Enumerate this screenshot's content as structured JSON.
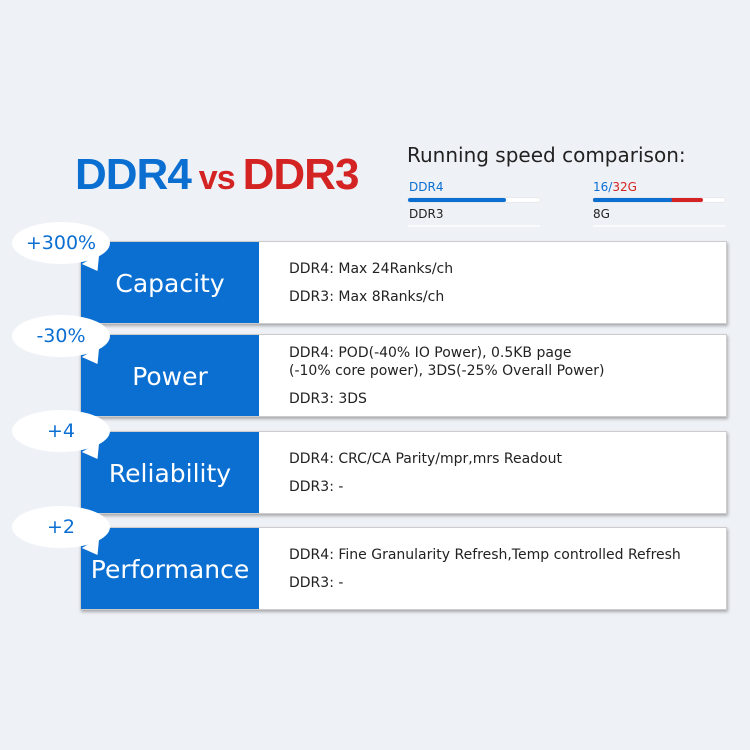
{
  "title": {
    "left": "DDR4",
    "vs": "vs",
    "right": "DDR3"
  },
  "speed": {
    "title": "Running speed comparison:",
    "ddr4_label": "DDR4",
    "ddr3_label": "DDR3",
    "cap_a": "16/",
    "cap_b": "32G",
    "cap_ddr3": "8G",
    "ddr4_level": 0.74,
    "cap16_level": 0.6,
    "cap32_level": 0.83,
    "colors": {
      "blue": "#0b6fd2",
      "red": "#d42323"
    }
  },
  "rows": [
    {
      "badge": "+300%",
      "category": "Capacity",
      "lines": [
        "DDR4: Max 24Ranks/ch",
        "DDR3: Max 8Ranks/ch"
      ]
    },
    {
      "badge": "-30%",
      "category": "Power",
      "lines": [
        "DDR4: POD(-40% IO Power), 0.5KB page\n(-10% core power), 3DS(-25% Overall Power)",
        "DDR3: 3DS"
      ]
    },
    {
      "badge": "+4",
      "category": "Reliability",
      "lines": [
        "DDR4: CRC/CA Parity/mpr,mrs Readout",
        "DDR3: -"
      ]
    },
    {
      "badge": "+2",
      "category": "Performance",
      "lines": [
        "DDR4: Fine Granularity Refresh,Temp controlled Refresh",
        "DDR3: -"
      ]
    }
  ]
}
